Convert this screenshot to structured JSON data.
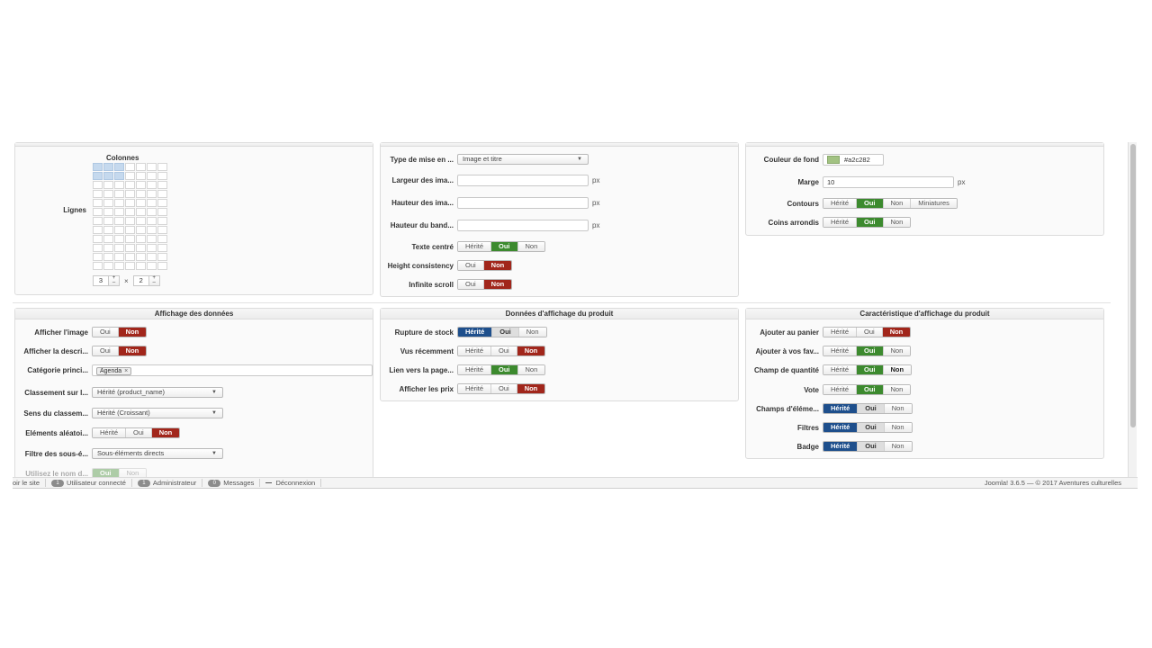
{
  "layout_panel": {
    "columns_label": "Colonnes",
    "rows_label": "Lignes",
    "columns_value": "3",
    "rows_value": "2",
    "times": "×",
    "plus": "+",
    "minus": "–"
  },
  "display_type_panel": {
    "layout_type_label": "Type de mise en ...",
    "layout_type_value": "Image et titre",
    "image_width_label": "Largeur des ima...",
    "image_height_label": "Hauteur des ima...",
    "band_height_label": "Hauteur du band...",
    "unit": "px",
    "centered_text_label": "Texte centré",
    "height_consistency_label": "Height consistency",
    "infinite_scroll_label": "Infinite scroll"
  },
  "style_panel": {
    "bg_color_label": "Couleur de fond",
    "bg_color_value": "#a2c282",
    "margin_label": "Marge",
    "margin_value": "10",
    "unit": "px",
    "borders_label": "Contours",
    "round_corners_label": "Coins arrondis",
    "thumbnails": "Miniatures"
  },
  "data_display_panel": {
    "title": "Affichage des données",
    "show_image_label": "Afficher l'image",
    "show_desc_label": "Afficher la descri...",
    "main_category_label": "Catégorie princi...",
    "category_tag": "Agenda",
    "tag_remove": "×",
    "order_label": "Classement sur l...",
    "order_value": "Hérité (product_name)",
    "order_dir_label": "Sens du classem...",
    "order_dir_value": "Hérité (Croissant)",
    "random_label": "Eléments aléatoi...",
    "sub_filter_label": "Filtre des sous-é...",
    "sub_filter_value": "Sous-éléments directs",
    "use_name_label": "Utilisez le nom d..."
  },
  "product_data_panel": {
    "title": "Données d'affichage du produit",
    "stock_out_label": "Rupture de stock",
    "recent_label": "Vus récemment",
    "page_link_label": "Lien vers la page...",
    "show_prices_label": "Afficher les prix"
  },
  "product_features_panel": {
    "title": "Caractéristique d'affichage du produit",
    "add_cart_label": "Ajouter au panier",
    "add_fav_label": "Ajouter à vos fav...",
    "quantity_label": "Champ de quantité",
    "vote_label": "Vote",
    "fields_label": "Champs d'éléme...",
    "filters_label": "Filtres",
    "badge_label": "Badge"
  },
  "options": {
    "inherited": "Hérité",
    "yes": "Oui",
    "no": "Non"
  },
  "footer": {
    "view_site": "oir le site",
    "users_count": "1",
    "users_label": "Utilisateur connecté",
    "admin_count": "1",
    "admin_label": "Administrateur",
    "messages_count": "0",
    "messages_label": "Messages",
    "logout_label": "Déconnexion",
    "version": "Joomla! 3.6.5 — © 2017 Aventures culturelles"
  },
  "colors": {
    "green": "#3c8a2e",
    "red": "#a1261b",
    "blue": "#1e4f8c",
    "swatch": "#a2c282"
  }
}
